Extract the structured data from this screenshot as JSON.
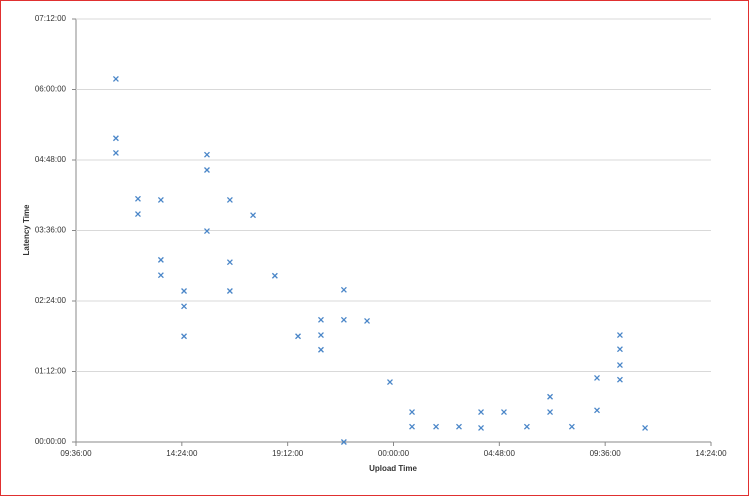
{
  "chart_data": {
    "type": "scatter",
    "x_label": "Upload Time",
    "y_label": "Latency Time",
    "xlim": [
      9.6,
      38.4
    ],
    "xticks": [
      {
        "value": 9.6,
        "label": "09:36:00"
      },
      {
        "value": 14.4,
        "label": "14:24:00"
      },
      {
        "value": 19.2,
        "label": "19:12:00"
      },
      {
        "value": 24,
        "label": "00:00:00"
      },
      {
        "value": 28.8,
        "label": "04:48:00"
      },
      {
        "value": 33.6,
        "label": "09:36:00"
      },
      {
        "value": 38.4,
        "label": "14:24:00"
      }
    ],
    "ylim": [
      0,
      7.2
    ],
    "yticks": [
      {
        "value": 0,
        "label": "00:00:00"
      },
      {
        "value": 1.2,
        "label": "01:12:00"
      },
      {
        "value": 2.4,
        "label": "02:24:00"
      },
      {
        "value": 3.6,
        "label": "03:36:00"
      },
      {
        "value": 4.8,
        "label": "04:48:00"
      },
      {
        "value": 6.0,
        "label": "06:00:00"
      },
      {
        "value": 7.2,
        "label": "07:12:00"
      }
    ],
    "grid": true,
    "series": [
      {
        "color": "#4a86c8",
        "x": [
          11.41,
          11.41,
          11.41,
          12.41,
          12.41,
          13.45,
          13.45,
          13.45,
          14.5,
          14.5,
          14.5,
          15.54,
          15.54,
          15.54,
          16.58,
          16.58,
          16.58,
          17.63,
          18.62,
          19.67,
          20.71,
          20.71,
          20.71,
          21.75,
          21.75,
          21.75,
          22.8,
          23.84,
          24.84,
          24.84,
          25.93,
          26.97,
          27.97,
          27.97,
          29.01,
          30.05,
          31.1,
          31.1,
          32.09,
          33.23,
          33.23,
          34.27,
          34.27,
          34.27,
          34.27,
          35.41
        ],
        "values": [
          6.18,
          5.17,
          4.92,
          4.14,
          3.88,
          4.12,
          3.1,
          2.84,
          2.57,
          2.31,
          1.8,
          4.89,
          4.63,
          3.59,
          4.12,
          3.06,
          2.57,
          3.86,
          2.83,
          1.8,
          2.08,
          1.82,
          1.57,
          2.59,
          2.08,
          0,
          2.06,
          1.02,
          0.51,
          0.26,
          0.26,
          0.26,
          0.51,
          0.24,
          0.51,
          0.26,
          0.77,
          0.51,
          0.26,
          1.09,
          0.54,
          1.82,
          1.58,
          1.31,
          1.06,
          0.24
        ]
      }
    ]
  }
}
